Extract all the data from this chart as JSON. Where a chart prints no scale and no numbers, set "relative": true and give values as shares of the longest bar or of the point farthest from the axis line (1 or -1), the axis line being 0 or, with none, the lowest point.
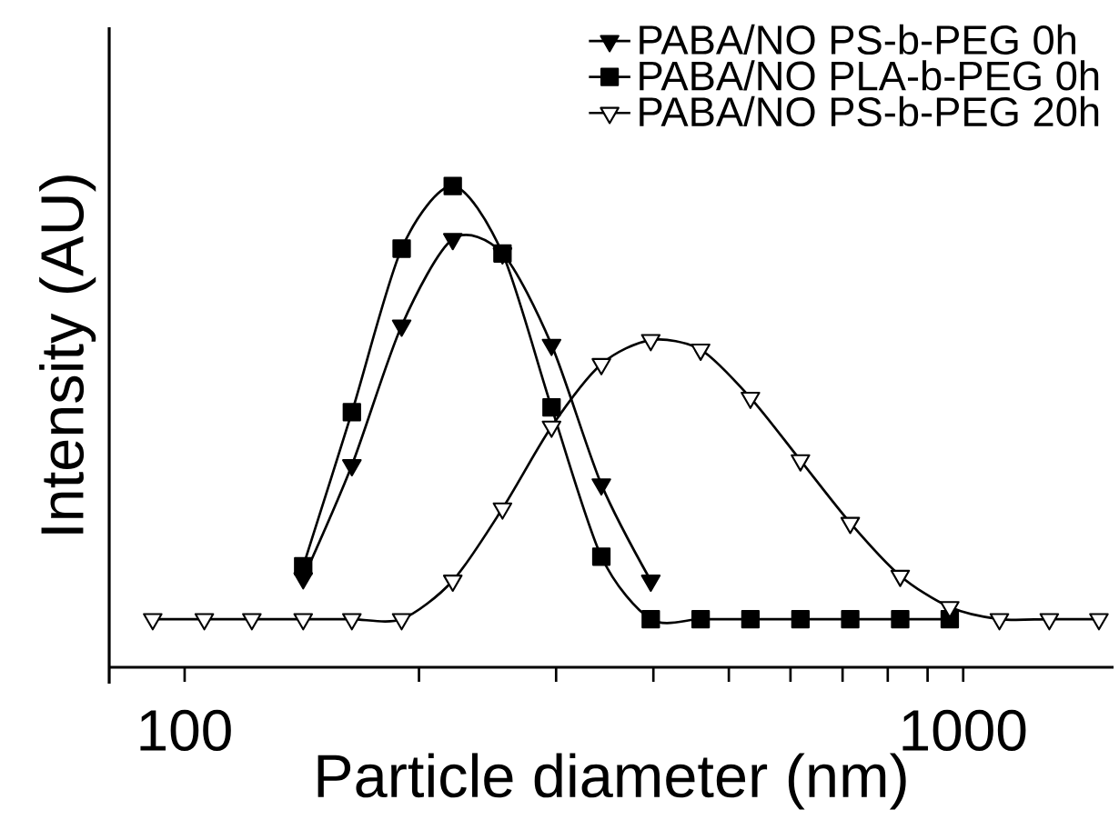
{
  "chart_data": {
    "type": "line",
    "relative": true,
    "log": "x",
    "xlabel": "Particle diameter (nm)",
    "ylabel": "Intensity (AU)",
    "x": [
      91,
      106,
      122,
      142,
      164,
      190,
      221,
      256,
      296,
      343,
      397,
      460,
      533,
      618,
      716,
      830,
      961,
      1113,
      1290,
      1494
    ],
    "xlim": [
      80,
      1560
    ],
    "xticks": [
      100,
      {
        "value": 200,
        "label": null
      },
      {
        "value": 300,
        "label": null
      },
      {
        "value": 400,
        "label": null
      },
      {
        "value": 500,
        "label": null
      },
      {
        "value": 600,
        "label": null
      },
      {
        "value": 700,
        "label": null
      },
      {
        "value": 800,
        "label": null
      },
      {
        "value": 900,
        "label": null
      },
      1000
    ],
    "legend": "top right",
    "grid": false,
    "line_style": "solid",
    "series": [
      {
        "name": "PABA/NO PS-b-PEG 0h",
        "color": "#000000",
        "marker": "triangle",
        "values": [
          null,
          null,
          null,
          0.185,
          0.42,
          0.71,
          0.89,
          0.86,
          0.67,
          0.38,
          0.18,
          null,
          null,
          null,
          null,
          null,
          null,
          null,
          null,
          null
        ]
      },
      {
        "name": "PABA/NO PLA-b-PEG 0h",
        "color": "#000000",
        "marker": "square",
        "values": [
          null,
          null,
          null,
          0.21,
          0.53,
          0.87,
          1.0,
          0.86,
          0.54,
          0.23,
          0.1,
          0.1,
          0.1,
          0.1,
          0.1,
          0.1,
          0.1,
          null,
          null,
          null
        ]
      },
      {
        "name": "PABA/NO PS-b-PEG 20h",
        "color": "#000000",
        "marker": "triangle",
        "values": [
          0.1,
          0.1,
          0.1,
          0.1,
          0.1,
          0.1,
          0.18,
          0.33,
          0.5,
          0.63,
          0.68,
          0.66,
          0.56,
          0.43,
          0.3,
          0.19,
          0.125,
          0.1,
          0.1,
          0.1
        ]
      }
    ]
  }
}
